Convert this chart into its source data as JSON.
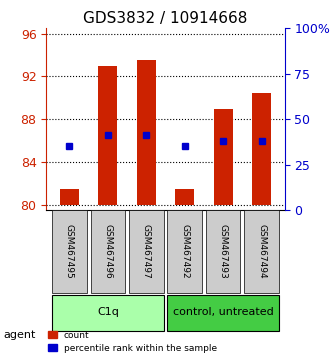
{
  "title": "GDS3832 / 10914668",
  "samples": [
    "GSM467495",
    "GSM467496",
    "GSM467497",
    "GSM467492",
    "GSM467493",
    "GSM467494"
  ],
  "bar_tops": [
    81.5,
    93.0,
    93.5,
    81.5,
    89.0,
    90.5
  ],
  "bar_bottoms": [
    80.0,
    80.0,
    80.0,
    80.0,
    80.0,
    80.0
  ],
  "blue_markers": [
    85.5,
    86.5,
    86.5,
    85.5,
    86.0,
    86.0
  ],
  "ylim_left": [
    79.5,
    96.5
  ],
  "ylim_right": [
    0,
    100
  ],
  "yticks_left": [
    80,
    84,
    88,
    92,
    96
  ],
  "yticks_right": [
    0,
    25,
    50,
    75,
    100
  ],
  "ytick_right_labels": [
    "0",
    "25",
    "50",
    "75",
    "100%"
  ],
  "groups": [
    {
      "label": "C1q",
      "indices": [
        0,
        1,
        2
      ],
      "color": "#aaffaa"
    },
    {
      "label": "control, untreated",
      "indices": [
        3,
        4,
        5
      ],
      "color": "#44cc44"
    }
  ],
  "bar_color": "#cc2200",
  "marker_color": "#0000cc",
  "bar_width": 0.5,
  "grid_color": "#000000",
  "background_color": "#ffffff",
  "plot_bg_color": "#ffffff",
  "left_tick_color": "#cc2200",
  "right_tick_color": "#0000cc",
  "agent_label": "agent",
  "legend_count": "count",
  "legend_pct": "percentile rank within the sample"
}
